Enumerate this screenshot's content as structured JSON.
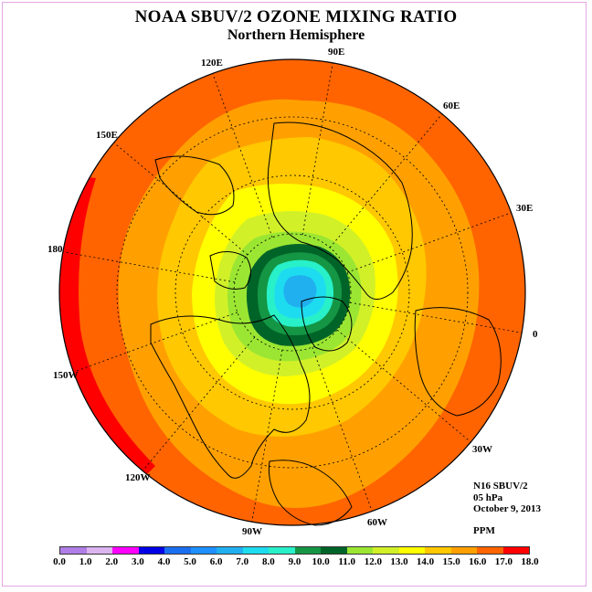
{
  "title": "NOAA SBUV/2 OZONE MIXING RATIO",
  "subtitle": "Northern Hemisphere",
  "longitude_labels": [
    "90E",
    "60E",
    "30E",
    "0",
    "30W",
    "60W",
    "90W",
    "120W",
    "150W",
    "180",
    "150E",
    "120E"
  ],
  "info": {
    "instrument": "N16 SBUV/2",
    "level": "05 hPa",
    "date": "October 9, 2013",
    "units": "PPM"
  },
  "colorbar": {
    "ticks": [
      "0.0",
      "1.0",
      "2.0",
      "3.0",
      "4.0",
      "5.0",
      "6.0",
      "7.0",
      "8.0",
      "9.0",
      "10.0",
      "11.0",
      "12.0",
      "13.0",
      "14.0",
      "15.0",
      "16.0",
      "17.0",
      "18.0"
    ],
    "colors": [
      "#b07ee6",
      "#dcb4f0",
      "#ff00ff",
      "#0000e6",
      "#1a6ef0",
      "#1e90ff",
      "#20b0f0",
      "#1edcf0",
      "#28f0c8",
      "#149644",
      "#006428",
      "#9be632",
      "#d2f028",
      "#ffff00",
      "#ffc800",
      "#ffa000",
      "#ff6400",
      "#ff0000",
      "#8c5a3c"
    ]
  },
  "map_colors": {
    "ocean_outer": "#ff6400",
    "edge_red": "#ff0000",
    "ring_15": "#ffa000",
    "ring_14": "#ffc800",
    "ring_13": "#ffff00",
    "ring_12": "#d2f028",
    "ring_11": "#9be632",
    "ring_10": "#006428",
    "ring_9": "#149644",
    "ring_8": "#28f0c8",
    "ring_7": "#1edcf0",
    "core_6": "#20b0f0"
  }
}
